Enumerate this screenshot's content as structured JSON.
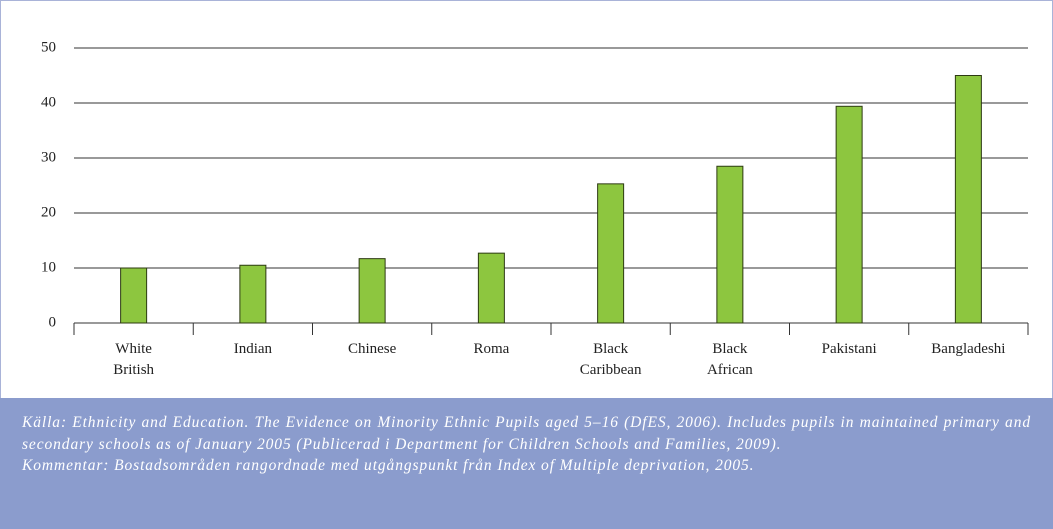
{
  "chart_data": {
    "type": "bar",
    "categories": [
      "White British",
      "Indian",
      "Chinese",
      "Roma",
      "Black Caribbean",
      "Black African",
      "Pakistani",
      "Bangladeshi"
    ],
    "values": [
      10,
      10.5,
      11.7,
      12.7,
      25.3,
      28.5,
      39.4,
      45
    ],
    "color": "#8dc63f",
    "ylim": [
      0,
      50
    ],
    "yticks": [
      0,
      10,
      20,
      30,
      40,
      50
    ],
    "grid": true
  },
  "caption": {
    "source": "Källa: Ethnicity and Education. The Evidence on Minority Ethnic Pupils aged 5–16 (DfES, 2006). Includes pupils in maintained primary and secondary schools as of January 2005 (Publicerad i Department for Children Schools and Families, 2009).",
    "comment": "Kommentar: Bostadsområden rangordnade med utgångspunkt från Index of Multiple deprivation, 2005."
  }
}
